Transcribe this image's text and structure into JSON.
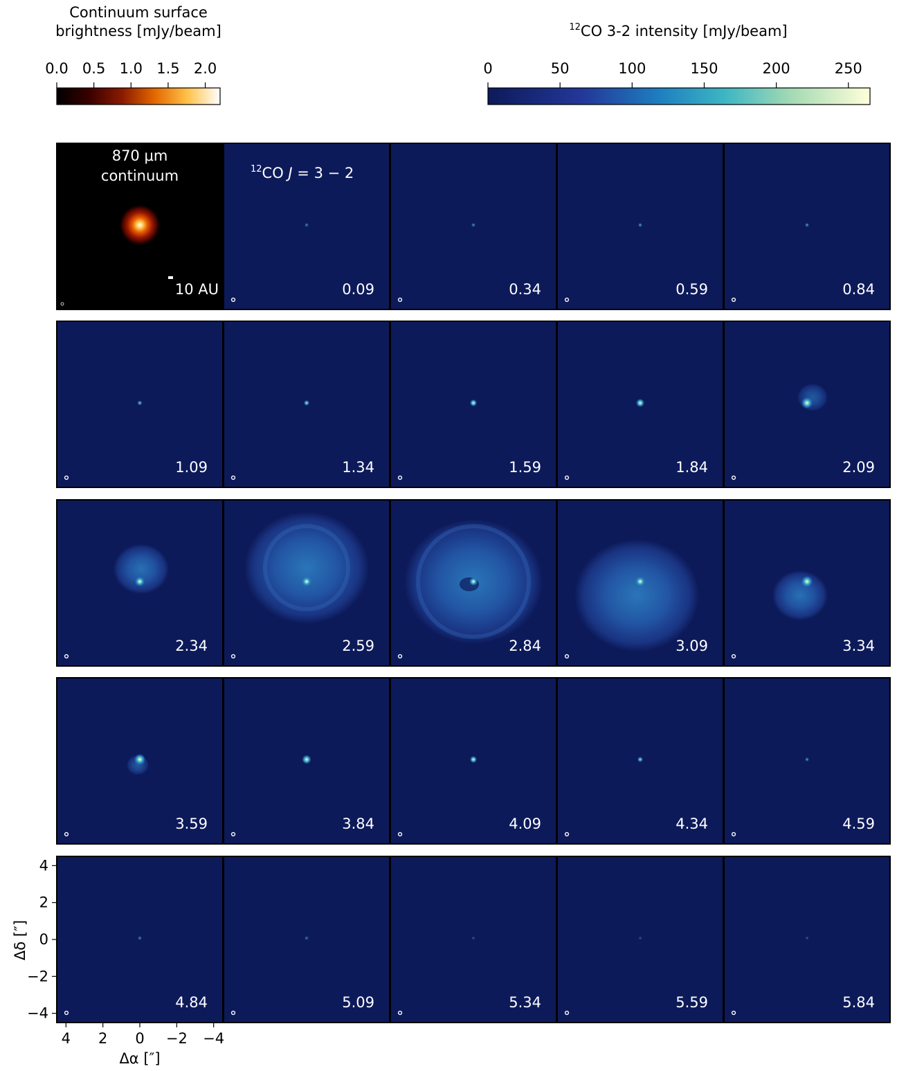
{
  "colorbars": {
    "continuum": {
      "label_line1": "Continuum surface",
      "label_line2": "brightness [mJy/beam]",
      "ticks": [
        "0.0",
        "0.5",
        "1.0",
        "1.5",
        "2.0"
      ],
      "tick_values": [
        0.0,
        0.5,
        1.0,
        1.5,
        2.0
      ],
      "range": [
        0.0,
        2.2
      ],
      "colormap": "afmhot"
    },
    "co": {
      "label_sup": "12",
      "label_rest": "CO 3-2 intensity [mJy/beam]",
      "ticks": [
        "0",
        "50",
        "100",
        "150",
        "200",
        "250"
      ],
      "tick_values": [
        0,
        50,
        100,
        150,
        200,
        250
      ],
      "range": [
        0,
        265
      ],
      "colormap": "YlGnBu_r"
    }
  },
  "continuum_panel": {
    "title_line1": "870 μm",
    "title_line2": "continuum",
    "scalebar_label": "10 AU"
  },
  "co_panel_label": {
    "sup": "12",
    "text_co": "CO ",
    "text_j": "J",
    "text_eq": " = 3 − 2"
  },
  "axes": {
    "xlabel": "Δα [″]",
    "ylabel": "Δδ [″]",
    "xticks": [
      "4",
      "2",
      "0",
      "−2",
      "−4"
    ],
    "yticks": [
      "4",
      "2",
      "0",
      "−2",
      "−4"
    ]
  },
  "colors": {
    "background_panel": "#0d1a5a",
    "continuum_background": "#000000",
    "frame": "#000000",
    "channel_label": "#ffffff"
  },
  "chart_data": {
    "type": "heatmap",
    "description_units": "channel velocities in km/s",
    "channels": [
      "0.09",
      "0.34",
      "0.59",
      "0.84",
      "1.09",
      "1.34",
      "1.59",
      "1.84",
      "2.09",
      "2.34",
      "2.59",
      "2.84",
      "3.09",
      "3.34",
      "3.59",
      "3.84",
      "4.09",
      "4.34",
      "4.59",
      "4.84",
      "5.09",
      "5.34",
      "5.59",
      "5.84"
    ],
    "xlim": [
      4.5,
      -4.5
    ],
    "ylim": [
      -4.5,
      4.5
    ]
  }
}
